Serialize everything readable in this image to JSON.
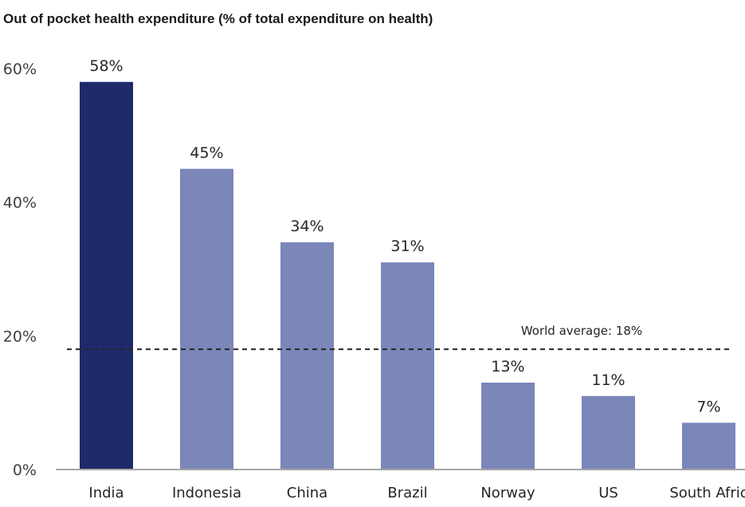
{
  "chart_data": {
    "type": "bar",
    "title": "Out of pocket health expenditure (% of total expenditure on health)",
    "categories": [
      "India",
      "Indonesia",
      "China",
      "Brazil",
      "Norway",
      "US",
      "South Afric"
    ],
    "values": [
      58,
      45,
      34,
      31,
      13,
      11,
      7
    ],
    "data_labels": [
      "58%",
      "45%",
      "34%",
      "31%",
      "13%",
      "11%",
      "7%"
    ],
    "ylim": [
      0,
      60
    ],
    "yticks": [
      0,
      20,
      40,
      60
    ],
    "ytick_labels": [
      "0%",
      "20%",
      "40%",
      "60%"
    ],
    "xlabel": "",
    "ylabel": "",
    "grid": false,
    "highlight_index": 0,
    "colors": {
      "highlight": "#1f2a6b",
      "bar": "#7b86b9",
      "axis": "#a6a6a6",
      "reference_line": "#262626"
    },
    "reference_line": {
      "value": 18,
      "label": "World average: 18%",
      "style": "dashed"
    }
  }
}
